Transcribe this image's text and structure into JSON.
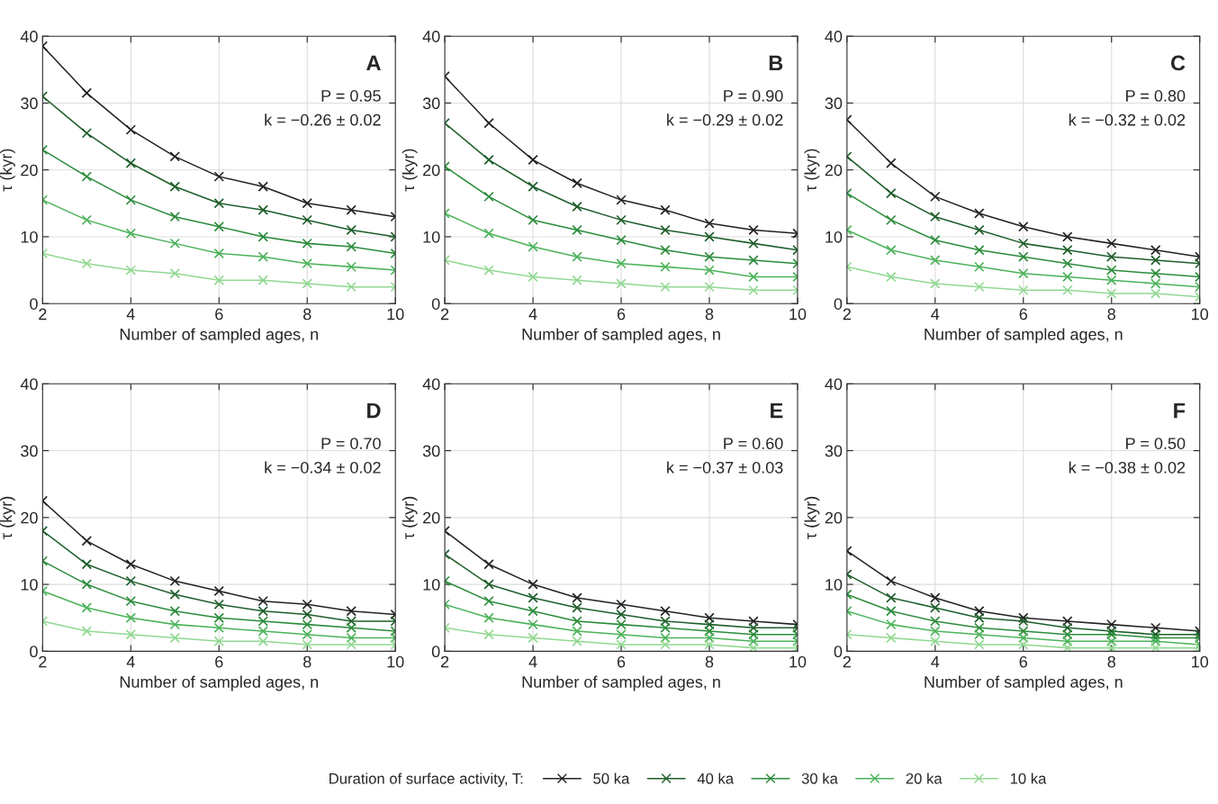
{
  "chart_data": [
    {
      "type": "line",
      "title": "A",
      "xlabel": "Number of sampled ages, n",
      "ylabel": "τ (kyr)",
      "annotations": [
        "P = 0.95",
        "k = −0.26 ± 0.02"
      ],
      "x": [
        2,
        3,
        4,
        5,
        6,
        7,
        8,
        9,
        10
      ],
      "xlim": [
        2,
        10
      ],
      "xticks": [
        2,
        4,
        6,
        8,
        10
      ],
      "ylim": [
        0,
        40
      ],
      "yticks": [
        0,
        10,
        20,
        30,
        40
      ],
      "grid": true,
      "marker": "cross",
      "line_style": "solid",
      "legend": "bottom",
      "legend_title": "Duration of surface activity, T:",
      "series": [
        {
          "name": "50 ka",
          "color": "#222222",
          "values": [
            38.5,
            31.5,
            26,
            22,
            19,
            17.5,
            15,
            14,
            13
          ]
        },
        {
          "name": "40 ka",
          "color": "#1e5e2b",
          "values": [
            31,
            25.5,
            21,
            17.5,
            15,
            14,
            12.5,
            11,
            10
          ]
        },
        {
          "name": "30 ka",
          "color": "#2b8c3b",
          "values": [
            23,
            19,
            15.5,
            13,
            11.5,
            10,
            9,
            8.5,
            7.5
          ]
        },
        {
          "name": "20 ka",
          "color": "#4cb35a",
          "values": [
            15.5,
            12.5,
            10.5,
            9,
            7.5,
            7,
            6,
            5.5,
            5
          ]
        },
        {
          "name": "10 ka",
          "color": "#92d892",
          "values": [
            7.5,
            6,
            5,
            4.5,
            3.5,
            3.5,
            3,
            2.5,
            2.5
          ]
        }
      ]
    },
    {
      "type": "line",
      "title": "B",
      "xlabel": "Number of sampled ages, n",
      "ylabel": "τ (kyr)",
      "annotations": [
        "P = 0.90",
        "k = −0.29 ± 0.02"
      ],
      "x": [
        2,
        3,
        4,
        5,
        6,
        7,
        8,
        9,
        10
      ],
      "xlim": [
        2,
        10
      ],
      "xticks": [
        2,
        4,
        6,
        8,
        10
      ],
      "ylim": [
        0,
        40
      ],
      "yticks": [
        0,
        10,
        20,
        30,
        40
      ],
      "grid": true,
      "marker": "cross",
      "line_style": "solid",
      "series": [
        {
          "color": "#222222",
          "values": [
            34,
            27,
            21.5,
            18,
            15.5,
            14,
            12,
            11,
            10.5
          ]
        },
        {
          "color": "#1e5e2b",
          "values": [
            27,
            21.5,
            17.5,
            14.5,
            12.5,
            11,
            10,
            9,
            8
          ]
        },
        {
          "color": "#2b8c3b",
          "values": [
            20.5,
            16,
            12.5,
            11,
            9.5,
            8,
            7,
            6.5,
            6
          ]
        },
        {
          "color": "#4cb35a",
          "values": [
            13.5,
            10.5,
            8.5,
            7,
            6,
            5.5,
            5,
            4,
            4
          ]
        },
        {
          "color": "#92d892",
          "values": [
            6.5,
            5,
            4,
            3.5,
            3,
            2.5,
            2.5,
            2,
            2
          ]
        }
      ]
    },
    {
      "type": "line",
      "title": "C",
      "xlabel": "Number of sampled ages, n",
      "ylabel": "τ (kyr)",
      "annotations": [
        "P = 0.80",
        "k = −0.32 ± 0.02"
      ],
      "x": [
        2,
        3,
        4,
        5,
        6,
        7,
        8,
        9,
        10
      ],
      "xlim": [
        2,
        10
      ],
      "xticks": [
        2,
        4,
        6,
        8,
        10
      ],
      "ylim": [
        0,
        40
      ],
      "yticks": [
        0,
        10,
        20,
        30,
        40
      ],
      "grid": true,
      "marker": "cross",
      "line_style": "solid",
      "series": [
        {
          "color": "#222222",
          "values": [
            27.5,
            21,
            16,
            13.5,
            11.5,
            10,
            9,
            8,
            7
          ]
        },
        {
          "color": "#1e5e2b",
          "values": [
            22,
            16.5,
            13,
            11,
            9,
            8,
            7,
            6.5,
            6
          ]
        },
        {
          "color": "#2b8c3b",
          "values": [
            16.5,
            12.5,
            9.5,
            8,
            7,
            6,
            5,
            4.5,
            4
          ]
        },
        {
          "color": "#4cb35a",
          "values": [
            11,
            8,
            6.5,
            5.5,
            4.5,
            4,
            3.5,
            3,
            2.5
          ]
        },
        {
          "color": "#92d892",
          "values": [
            5.5,
            4,
            3,
            2.5,
            2,
            2,
            1.5,
            1.5,
            1
          ]
        }
      ]
    },
    {
      "type": "line",
      "title": "D",
      "xlabel": "Number of sampled ages, n",
      "ylabel": "τ (kyr)",
      "annotations": [
        "P = 0.70",
        "k = −0.34 ± 0.02"
      ],
      "x": [
        2,
        3,
        4,
        5,
        6,
        7,
        8,
        9,
        10
      ],
      "xlim": [
        2,
        10
      ],
      "xticks": [
        2,
        4,
        6,
        8,
        10
      ],
      "ylim": [
        0,
        40
      ],
      "yticks": [
        0,
        10,
        20,
        30,
        40
      ],
      "grid": true,
      "marker": "cross",
      "line_style": "solid",
      "series": [
        {
          "color": "#222222",
          "values": [
            22.5,
            16.5,
            13,
            10.5,
            9,
            7.5,
            7,
            6,
            5.5
          ]
        },
        {
          "color": "#1e5e2b",
          "values": [
            18,
            13,
            10.5,
            8.5,
            7,
            6,
            5.5,
            4.5,
            4.5
          ]
        },
        {
          "color": "#2b8c3b",
          "values": [
            13.5,
            10,
            7.5,
            6,
            5,
            4.5,
            4,
            3.5,
            3
          ]
        },
        {
          "color": "#4cb35a",
          "values": [
            9,
            6.5,
            5,
            4,
            3.5,
            3,
            2.5,
            2,
            2
          ]
        },
        {
          "color": "#92d892",
          "values": [
            4.5,
            3,
            2.5,
            2,
            1.5,
            1.5,
            1,
            1,
            1
          ]
        }
      ]
    },
    {
      "type": "line",
      "title": "E",
      "xlabel": "Number of sampled ages, n",
      "ylabel": "τ (kyr)",
      "annotations": [
        "P = 0.60",
        "k = −0.37 ± 0.03"
      ],
      "x": [
        2,
        3,
        4,
        5,
        6,
        7,
        8,
        9,
        10
      ],
      "xlim": [
        2,
        10
      ],
      "xticks": [
        2,
        4,
        6,
        8,
        10
      ],
      "ylim": [
        0,
        40
      ],
      "yticks": [
        0,
        10,
        20,
        30,
        40
      ],
      "grid": true,
      "marker": "cross",
      "line_style": "solid",
      "series": [
        {
          "color": "#222222",
          "values": [
            18,
            13,
            10,
            8,
            7,
            6,
            5,
            4.5,
            4
          ]
        },
        {
          "color": "#1e5e2b",
          "values": [
            14.5,
            10,
            8,
            6.5,
            5.5,
            4.5,
            4,
            3.5,
            3.5
          ]
        },
        {
          "color": "#2b8c3b",
          "values": [
            10.5,
            7.5,
            6,
            4.5,
            4,
            3.5,
            3,
            2.5,
            2.5
          ]
        },
        {
          "color": "#4cb35a",
          "values": [
            7,
            5,
            4,
            3,
            2.5,
            2,
            2,
            1.5,
            1.5
          ]
        },
        {
          "color": "#92d892",
          "values": [
            3.5,
            2.5,
            2,
            1.5,
            1,
            1,
            1,
            0.5,
            0.5
          ]
        }
      ]
    },
    {
      "type": "line",
      "title": "F",
      "xlabel": "Number of sampled ages, n",
      "ylabel": "τ (kyr)",
      "annotations": [
        "P = 0.50",
        "k = −0.38 ± 0.02"
      ],
      "x": [
        2,
        3,
        4,
        5,
        6,
        7,
        8,
        9,
        10
      ],
      "xlim": [
        2,
        10
      ],
      "xticks": [
        2,
        4,
        6,
        8,
        10
      ],
      "ylim": [
        0,
        40
      ],
      "yticks": [
        0,
        10,
        20,
        30,
        40
      ],
      "grid": true,
      "marker": "cross",
      "line_style": "solid",
      "series": [
        {
          "color": "#222222",
          "values": [
            15,
            10.5,
            8,
            6,
            5,
            4.5,
            4,
            3.5,
            3
          ]
        },
        {
          "color": "#1e5e2b",
          "values": [
            11.5,
            8,
            6.5,
            5,
            4.5,
            3.5,
            3,
            2.5,
            2.5
          ]
        },
        {
          "color": "#2b8c3b",
          "values": [
            8.5,
            6,
            4.5,
            3.5,
            3,
            2.5,
            2.5,
            2,
            2
          ]
        },
        {
          "color": "#4cb35a",
          "values": [
            6,
            4,
            3,
            2.5,
            2,
            1.5,
            1.5,
            1.5,
            1
          ]
        },
        {
          "color": "#92d892",
          "values": [
            2.5,
            2,
            1.5,
            1,
            1,
            0.5,
            0.5,
            0.5,
            0.5
          ]
        }
      ]
    }
  ]
}
